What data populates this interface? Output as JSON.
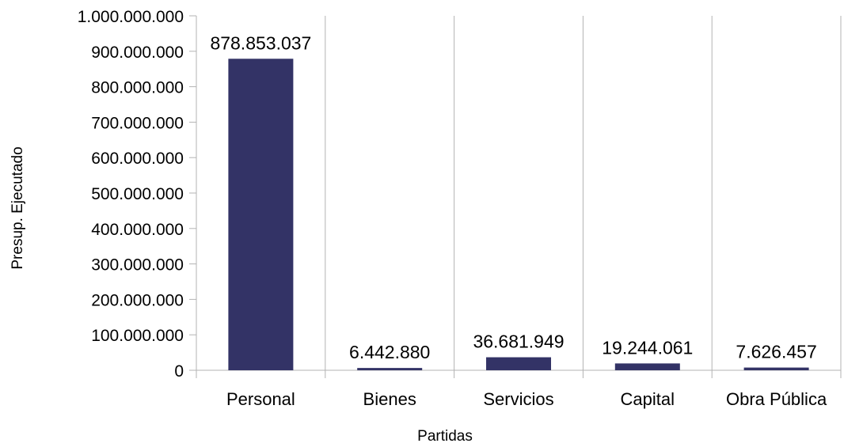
{
  "chart_data": {
    "type": "bar",
    "xlabel": "Partidas",
    "ylabel": "Presup. Ejecutado",
    "categories": [
      "Personal",
      "Bienes",
      "Servicios",
      "Capital",
      "Obra Pública"
    ],
    "values": [
      878853037,
      6442880,
      36681949,
      19244061,
      7626457
    ],
    "data_labels": [
      "878.853.037",
      "6.442.880",
      "36.681.949",
      "19.244.061",
      "7.626.457"
    ],
    "ylim": [
      0,
      1000000000
    ],
    "yticks": [
      0,
      100000000,
      200000000,
      300000000,
      400000000,
      500000000,
      600000000,
      700000000,
      800000000,
      900000000,
      1000000000
    ],
    "ytick_labels": [
      "0",
      "100.000.000",
      "200.000.000",
      "300.000.000",
      "400.000.000",
      "500.000.000",
      "600.000.000",
      "700.000.000",
      "800.000.000",
      "900.000.000",
      "1.000.000.000"
    ],
    "grid": "vertical",
    "bar_color": "#333366",
    "grid_color": "#b3b3b3"
  }
}
